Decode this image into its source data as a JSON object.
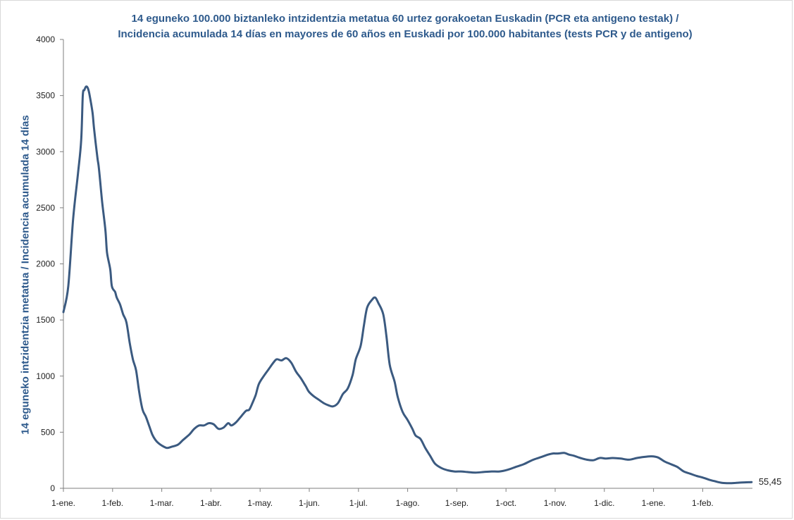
{
  "chart_data": {
    "type": "line",
    "title_lines": [
      "14 eguneko 100.000 biztanleko intzidentzia metatua 60 urtez gorakoetan Euskadin (PCR eta antigeno testak) /",
      "Incidencia acumulada  14 días en mayores de 60 años en Euskadi por 100.000 habitantes (tests PCR y de antigeno)"
    ],
    "ylabel": "14 eguneko intzidentzia metatua / Incidencia acumulada 14 días",
    "ylim": [
      0,
      4000
    ],
    "yticks": [
      0,
      500,
      1000,
      1500,
      2000,
      2500,
      3000,
      3500,
      4000
    ],
    "xticks": [
      "1-ene.",
      "1-feb.",
      "1-mar.",
      "1-abr.",
      "1-may.",
      "1-jun.",
      "1-jul.",
      "1-ago.",
      "1-sep.",
      "1-oct.",
      "1-nov.",
      "1-dic.",
      "1-ene.",
      "1-feb."
    ],
    "xtick_days": [
      0,
      31,
      59,
      90,
      120,
      151,
      181,
      212,
      243,
      273,
      304,
      334,
      365,
      396
    ],
    "x_range_days": [
      0,
      420
    ],
    "series": [
      {
        "color": "#3b5a80",
        "points": [
          [
            0,
            1570
          ],
          [
            3,
            1800
          ],
          [
            6,
            2400
          ],
          [
            9,
            2800
          ],
          [
            11,
            3100
          ],
          [
            12,
            3500
          ],
          [
            13,
            3550
          ],
          [
            14,
            3580
          ],
          [
            15,
            3570
          ],
          [
            16,
            3520
          ],
          [
            18,
            3350
          ],
          [
            19,
            3200
          ],
          [
            21,
            2950
          ],
          [
            22,
            2850
          ],
          [
            24,
            2550
          ],
          [
            26,
            2300
          ],
          [
            27,
            2100
          ],
          [
            29,
            1950
          ],
          [
            30,
            1800
          ],
          [
            32,
            1750
          ],
          [
            33,
            1700
          ],
          [
            35,
            1640
          ],
          [
            37,
            1550
          ],
          [
            39,
            1480
          ],
          [
            41,
            1300
          ],
          [
            43,
            1150
          ],
          [
            45,
            1050
          ],
          [
            47,
            850
          ],
          [
            49,
            700
          ],
          [
            51,
            640
          ],
          [
            53,
            560
          ],
          [
            55,
            480
          ],
          [
            57,
            430
          ],
          [
            59,
            400
          ],
          [
            61,
            380
          ],
          [
            64,
            360
          ],
          [
            67,
            370
          ],
          [
            71,
            390
          ],
          [
            74,
            430
          ],
          [
            78,
            480
          ],
          [
            81,
            530
          ],
          [
            84,
            560
          ],
          [
            87,
            560
          ],
          [
            90,
            580
          ],
          [
            93,
            570
          ],
          [
            96,
            530
          ],
          [
            99,
            540
          ],
          [
            102,
            580
          ],
          [
            104,
            560
          ],
          [
            107,
            590
          ],
          [
            110,
            640
          ],
          [
            113,
            690
          ],
          [
            115,
            700
          ],
          [
            117,
            760
          ],
          [
            119,
            830
          ],
          [
            121,
            930
          ],
          [
            124,
            1000
          ],
          [
            127,
            1060
          ],
          [
            130,
            1120
          ],
          [
            132,
            1150
          ],
          [
            135,
            1140
          ],
          [
            138,
            1160
          ],
          [
            141,
            1120
          ],
          [
            144,
            1040
          ],
          [
            147,
            980
          ],
          [
            150,
            910
          ],
          [
            152,
            860
          ],
          [
            155,
            820
          ],
          [
            158,
            790
          ],
          [
            161,
            760
          ],
          [
            164,
            740
          ],
          [
            167,
            730
          ],
          [
            170,
            760
          ],
          [
            173,
            840
          ],
          [
            176,
            890
          ],
          [
            179,
            1010
          ],
          [
            181,
            1150
          ],
          [
            184,
            1270
          ],
          [
            186,
            1450
          ],
          [
            188,
            1610
          ],
          [
            191,
            1680
          ],
          [
            193,
            1700
          ],
          [
            195,
            1650
          ],
          [
            198,
            1550
          ],
          [
            200,
            1350
          ],
          [
            202,
            1100
          ],
          [
            205,
            950
          ],
          [
            207,
            810
          ],
          [
            210,
            680
          ],
          [
            213,
            610
          ],
          [
            216,
            530
          ],
          [
            218,
            470
          ],
          [
            221,
            440
          ],
          [
            224,
            360
          ],
          [
            227,
            290
          ],
          [
            230,
            220
          ],
          [
            234,
            180
          ],
          [
            238,
            160
          ],
          [
            242,
            150
          ],
          [
            246,
            150
          ],
          [
            250,
            145
          ],
          [
            255,
            140
          ],
          [
            260,
            145
          ],
          [
            265,
            150
          ],
          [
            270,
            150
          ],
          [
            275,
            165
          ],
          [
            280,
            190
          ],
          [
            285,
            215
          ],
          [
            290,
            250
          ],
          [
            295,
            275
          ],
          [
            300,
            300
          ],
          [
            303,
            310
          ],
          [
            306,
            310
          ],
          [
            310,
            315
          ],
          [
            313,
            300
          ],
          [
            316,
            290
          ],
          [
            320,
            270
          ],
          [
            324,
            255
          ],
          [
            328,
            250
          ],
          [
            332,
            270
          ],
          [
            336,
            265
          ],
          [
            340,
            270
          ],
          [
            345,
            265
          ],
          [
            350,
            255
          ],
          [
            355,
            270
          ],
          [
            360,
            280
          ],
          [
            364,
            285
          ],
          [
            368,
            275
          ],
          [
            372,
            240
          ],
          [
            376,
            215
          ],
          [
            380,
            190
          ],
          [
            384,
            150
          ],
          [
            388,
            130
          ],
          [
            392,
            110
          ],
          [
            396,
            95
          ],
          [
            400,
            75
          ],
          [
            404,
            60
          ],
          [
            408,
            48
          ],
          [
            412,
            45
          ],
          [
            416,
            48
          ],
          [
            420,
            52
          ],
          [
            426,
            55.45
          ]
        ]
      }
    ],
    "last_value_label": "55,45"
  }
}
